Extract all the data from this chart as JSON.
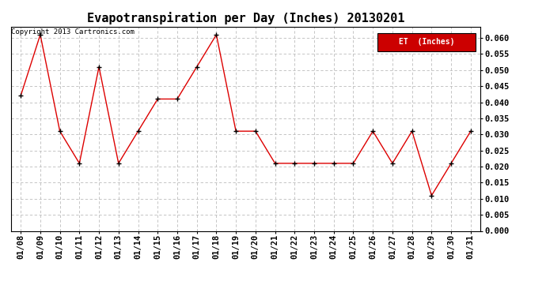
{
  "title": "Evapotranspiration per Day (Inches) 20130201",
  "copyright_text": "Copyright 2013 Cartronics.com",
  "legend_label": "ET  (Inches)",
  "legend_bg": "#cc0000",
  "legend_text_color": "#ffffff",
  "line_color": "#dd0000",
  "marker_color": "#000000",
  "background_color": "#ffffff",
  "grid_color": "#bbbbbb",
  "x_labels": [
    "01/08",
    "01/09",
    "01/10",
    "01/11",
    "01/12",
    "01/13",
    "01/14",
    "01/15",
    "01/16",
    "01/17",
    "01/18",
    "01/19",
    "01/20",
    "01/21",
    "01/22",
    "01/23",
    "01/24",
    "01/25",
    "01/26",
    "01/27",
    "01/28",
    "01/29",
    "01/30",
    "01/31"
  ],
  "y_values": [
    0.042,
    0.061,
    0.031,
    0.021,
    0.051,
    0.021,
    0.031,
    0.041,
    0.041,
    0.051,
    0.061,
    0.031,
    0.031,
    0.021,
    0.021,
    0.021,
    0.021,
    0.021,
    0.031,
    0.021,
    0.031,
    0.011,
    0.021,
    0.031
  ],
  "ylim": [
    0.0,
    0.0635
  ],
  "yticks": [
    0.0,
    0.005,
    0.01,
    0.015,
    0.02,
    0.025,
    0.03,
    0.035,
    0.04,
    0.045,
    0.05,
    0.055,
    0.06
  ],
  "title_fontsize": 11,
  "tick_fontsize": 7.5,
  "copyright_fontsize": 6.5,
  "legend_fontsize": 7
}
